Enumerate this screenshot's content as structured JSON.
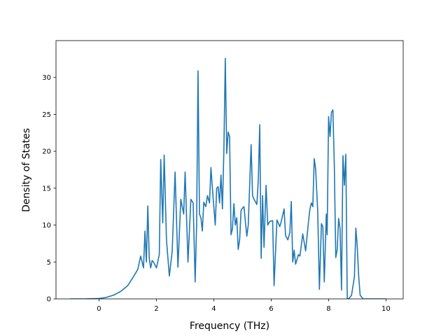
{
  "chart_data": {
    "type": "line",
    "title": "",
    "xlabel": "Frequency (THz)",
    "ylabel": "Density of States",
    "xlim": [
      -1.0,
      10.0
    ],
    "ylim": [
      0,
      35
    ],
    "view_xlim": [
      -1.5,
      10.6
    ],
    "xticks": [
      0,
      2,
      4,
      6,
      8,
      10
    ],
    "yticks": [
      0,
      5,
      10,
      15,
      20,
      25,
      30
    ],
    "grid": false,
    "legend": "none",
    "colors": {
      "line": "#1f77b4",
      "axes": "#000000",
      "background": "#ffffff"
    },
    "series": [
      {
        "x": [
          -1.0,
          -0.5,
          0.0,
          0.25,
          0.5,
          0.75,
          1.0,
          1.2,
          1.35,
          1.45,
          1.55,
          1.6,
          1.65,
          1.7,
          1.75,
          1.8,
          1.85,
          1.9,
          2.0,
          2.1,
          2.15,
          2.22,
          2.27,
          2.35,
          2.45,
          2.55,
          2.65,
          2.75,
          2.85,
          2.95,
          3.0,
          3.1,
          3.2,
          3.28,
          3.35,
          3.4,
          3.45,
          3.5,
          3.55,
          3.6,
          3.65,
          3.72,
          3.78,
          3.85,
          3.9,
          3.95,
          4.05,
          4.1,
          4.15,
          4.2,
          4.25,
          4.3,
          4.35,
          4.4,
          4.45,
          4.5,
          4.55,
          4.6,
          4.65,
          4.7,
          4.75,
          4.8,
          4.85,
          4.9,
          4.95,
          5.0,
          5.05,
          5.15,
          5.2,
          5.3,
          5.35,
          5.4,
          5.5,
          5.55,
          5.6,
          5.65,
          5.7,
          5.75,
          5.82,
          5.88,
          5.95,
          6.05,
          6.1,
          6.2,
          6.3,
          6.35,
          6.45,
          6.5,
          6.58,
          6.65,
          6.7,
          6.75,
          6.8,
          6.85,
          6.95,
          7.0,
          7.1,
          7.2,
          7.3,
          7.35,
          7.4,
          7.45,
          7.5,
          7.55,
          7.62,
          7.68,
          7.75,
          7.8,
          7.85,
          7.92,
          7.95,
          8.0,
          8.05,
          8.1,
          8.15,
          8.2,
          8.25,
          8.3,
          8.35,
          8.4,
          8.45,
          8.5,
          8.55,
          8.6,
          8.65,
          8.7,
          8.8,
          8.9,
          8.95,
          9.0,
          9.05,
          9.1,
          9.2,
          9.3,
          10.0
        ],
        "y": [
          0,
          0,
          0.05,
          0.2,
          0.5,
          1.0,
          1.8,
          3.0,
          4.0,
          5.8,
          4.2,
          9.2,
          5.0,
          12.6,
          5.5,
          4.2,
          5.2,
          5.0,
          4.2,
          6.0,
          18.9,
          10.3,
          19.5,
          8.0,
          3.1,
          6.5,
          17.2,
          4.3,
          13.5,
          11.5,
          17.2,
          5.0,
          13.5,
          13.0,
          2.3,
          10.0,
          30.9,
          11.5,
          11.0,
          9.2,
          13.1,
          12.5,
          14.0,
          13.0,
          17.8,
          15.0,
          10.0,
          15.0,
          15.2,
          13.0,
          16.8,
          12.2,
          20.0,
          32.6,
          19.7,
          22.6,
          22.0,
          8.7,
          9.5,
          12.9,
          10.0,
          11.0,
          6.7,
          8.0,
          12.0,
          12.3,
          12.5,
          8.5,
          10.0,
          20.9,
          14.0,
          13.5,
          12.8,
          16.0,
          23.6,
          5.5,
          14.0,
          7.0,
          15.4,
          10.0,
          10.5,
          10.6,
          1.8,
          10.7,
          9.8,
          10.5,
          12.2,
          8.6,
          8.0,
          9.0,
          13.2,
          5.0,
          6.6,
          4.7,
          6.0,
          5.8,
          8.8,
          6.5,
          10.5,
          12.2,
          13.0,
          12.5,
          19.0,
          17.5,
          12.0,
          1.3,
          10.2,
          9.8,
          2.3,
          11.5,
          8.7,
          24.7,
          22.0,
          25.3,
          25.6,
          18.0,
          5.6,
          6.7,
          10.9,
          9.5,
          1.2,
          19.4,
          15.4,
          19.6,
          0.1,
          0.0,
          0.5,
          3.0,
          9.6,
          7.0,
          3.0,
          0.5,
          0.0,
          0.0,
          0.0
        ]
      }
    ]
  }
}
